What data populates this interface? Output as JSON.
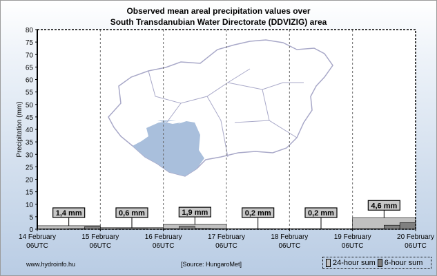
{
  "title_line1": "Observed mean areal precipitation values over",
  "title_line2": "South Transdanubian Water Directorate (DDVIZIG) area",
  "footer": {
    "website": "www.hydroinfo.hu",
    "source": "[Source: HungaroMet]"
  },
  "legend": [
    {
      "label": "24-hour sum",
      "color": "#c0c0c0"
    },
    {
      "label": "6-hour sum",
      "color": "#808080"
    }
  ],
  "chart_data": {
    "type": "bar",
    "ylabel": "Precipitation (mm)",
    "ylim": [
      0,
      80
    ],
    "yticks": [
      0,
      5,
      10,
      15,
      20,
      25,
      30,
      35,
      40,
      45,
      50,
      55,
      60,
      65,
      70,
      75,
      80
    ],
    "x_ticks": [
      {
        "day": "14 February",
        "hour": "06UTC"
      },
      {
        "day": "15 February",
        "hour": "06UTC"
      },
      {
        "day": "16 February",
        "hour": "06UTC"
      },
      {
        "day": "17 February",
        "hour": "06UTC"
      },
      {
        "day": "18 February",
        "hour": "06UTC"
      },
      {
        "day": "19 February",
        "hour": "06UTC"
      },
      {
        "day": "20 February",
        "hour": "06UTC"
      }
    ],
    "daily_sums": [
      1.4,
      0.6,
      1.9,
      0.2,
      0.2,
      4.6
    ],
    "daily_labels": [
      "1,4 mm",
      "0,6 mm",
      "1,9 mm",
      "0,2 mm",
      "0,2 mm",
      "4,6 mm"
    ],
    "six_hour_sums": [
      [
        0.1,
        0.1,
        0.2,
        1.0
      ],
      [
        0.1,
        0.2,
        0.2,
        0.1
      ],
      [
        0.2,
        1.2,
        0.3,
        0.2
      ],
      [
        0.0,
        0.1,
        0.1,
        0.0
      ],
      [
        0.0,
        0.1,
        0.1,
        0.0
      ],
      [
        0.2,
        0.2,
        1.6,
        2.6
      ]
    ],
    "grid": true,
    "colors": {
      "daily": "#c0c0c0",
      "six_hour": "#808080",
      "map_region": "#a9bfdc",
      "map_outline": "#a8a8c8"
    }
  }
}
